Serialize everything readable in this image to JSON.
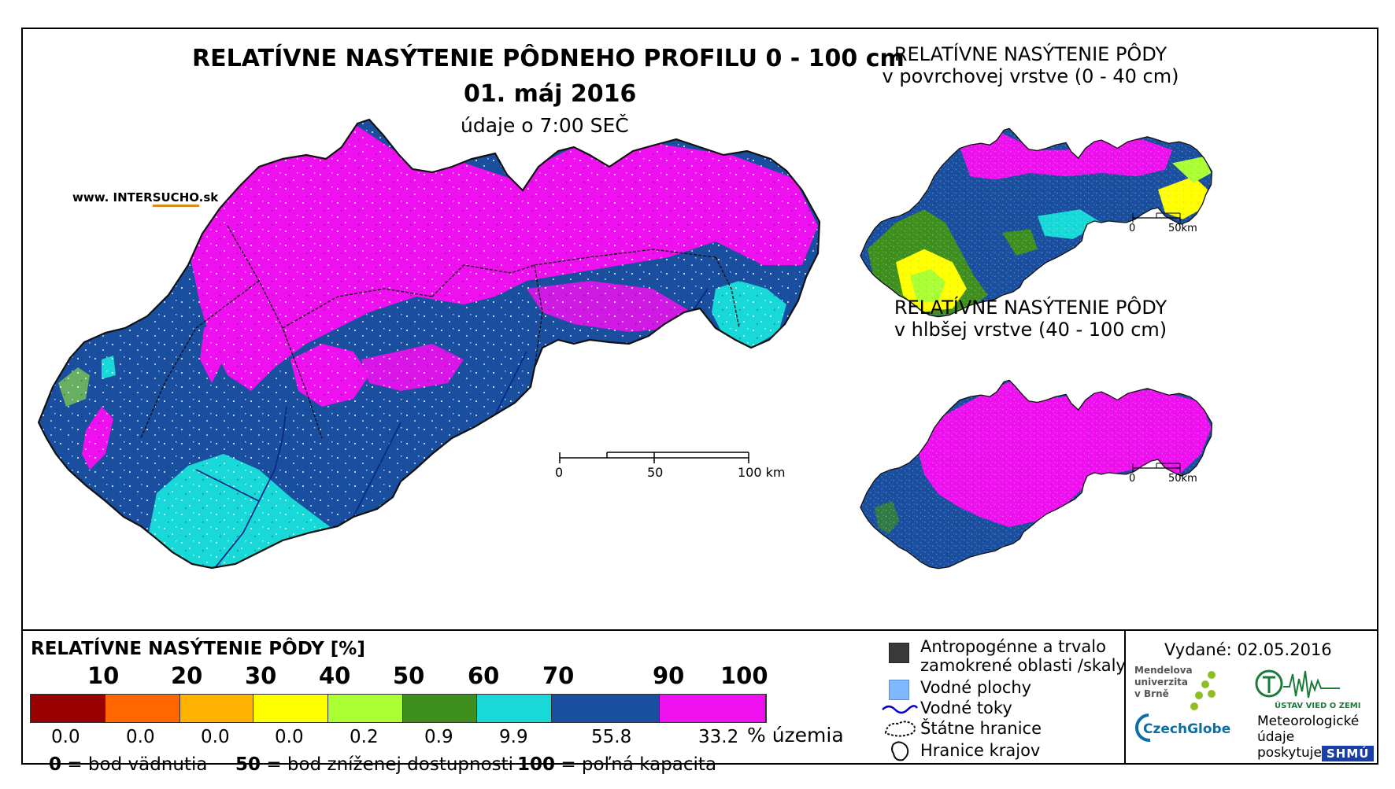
{
  "main": {
    "title": "RELATÍVNE NASÝTENIE PÔDNEHO PROFILU 0 - 100 cm",
    "date": "01. máj 2016",
    "time": "údaje o 7:00 SEČ",
    "website_prefix": "www. INTER",
    "website_brand": "SUCHO",
    "website_suffix": ".sk"
  },
  "insets": [
    {
      "title_line1": "RELATÍVNE NASÝTENIE PÔDY",
      "title_line2": "v povrchovej vrstve (0 - 40 cm)",
      "scale_labels": [
        "0",
        "50km"
      ]
    },
    {
      "title_line1": "RELATÍVNE NASÝTENIE PÔDY",
      "title_line2": "v hlbšej vrstve (40 - 100 cm)",
      "scale_labels": [
        "0",
        "50km"
      ]
    }
  ],
  "scale_bar": {
    "labels": [
      "0",
      "50",
      "100 km"
    ]
  },
  "legend": {
    "title": "RELATÍVNE NASÝTENIE PÔDY [%]",
    "ticks": [
      "10",
      "20",
      "30",
      "40",
      "50",
      "60",
      "70",
      "90",
      "100"
    ],
    "colors": [
      "#990000",
      "#ff6600",
      "#ffb300",
      "#ffff00",
      "#aaff33",
      "#3f8f1f",
      "#18d8d8",
      "#1a4fa0",
      "#ee10ee"
    ],
    "percent_values": [
      "0.0",
      "0.0",
      "0.0",
      "0.0",
      "0.2",
      "0.9",
      "9.9",
      "55.8",
      "33.2"
    ],
    "percent_suffix": "% územia",
    "definitions": [
      {
        "value": "0",
        "text": "= bod vädnutia"
      },
      {
        "value": "50",
        "text": "= bod zníženej dostupnosti"
      },
      {
        "value": "100",
        "text": "= poľná kapacita"
      }
    ]
  },
  "symbol_legend": [
    {
      "icon": "grey-square-icon",
      "text_line1": "Antropogénne a trvalo",
      "text_line2": "zamokrené oblasti /skaly",
      "color": "#3a3a3a"
    },
    {
      "icon": "water-body-icon",
      "text_line1": "Vodné plochy",
      "color": "#7fb8ff"
    },
    {
      "icon": "river-icon",
      "text_line1": "Vodné toky",
      "color": "#0000cc"
    },
    {
      "icon": "state-border-icon",
      "text_line1": "Štátne hranice"
    },
    {
      "icon": "region-border-icon",
      "text_line1": "Hranice krajov"
    }
  ],
  "footer": {
    "issued": "Vydané: 02.05.2016",
    "mendel": [
      "Mendelova",
      "univerzita",
      "v Brně"
    ],
    "czechglobe": "CzechGlobe",
    "ustav": "ÚSTAV VIED O ZEMI",
    "meteo": [
      "Meteorologické",
      "údaje",
      "poskytuje:"
    ],
    "shmu": "SHMÚ"
  },
  "map_colors": {
    "magenta": "#ee10ee",
    "blue": "#1a4fa0",
    "cyan": "#18d8d8",
    "yellow": "#ffff00",
    "green": "#3f8f1f",
    "lightgreen": "#aaff33"
  }
}
